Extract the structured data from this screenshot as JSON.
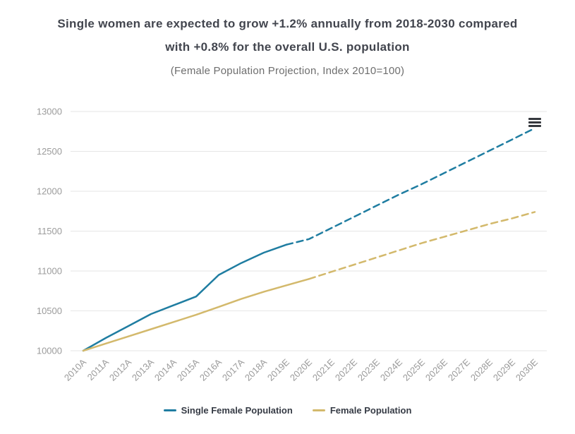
{
  "header": {
    "title_line1": "Single women are expected to grow +1.2% annually from 2018-2030 compared",
    "title_line2": "with +0.8% for the overall U.S. population",
    "subtitle": "(Female Population Projection, Index 2010=100)"
  },
  "colors": {
    "single_female_line": "#1f7da1",
    "female_line": "#d3b96c",
    "grid": "#e6e6e6",
    "axis_label": "#9b9b9b",
    "title_text": "#42454e",
    "subtitle_text": "#6e6e6e",
    "legend_text": "#363b45",
    "menu_icon": "#35383d"
  },
  "menu_icon_name": "chart-context-menu",
  "chart_data": {
    "type": "line",
    "title": "Single women are expected to grow +1.2% annually from 2018-2030 compared with +0.8% for the overall U.S. population",
    "subtitle": "(Female Population Projection, Index 2010=100)",
    "categories": [
      "2010A",
      "2011A",
      "2012A",
      "2013A",
      "2014A",
      "2015A",
      "2016A",
      "2017A",
      "2018A",
      "2019E",
      "2020E",
      "2021E",
      "2022E",
      "2023E",
      "2024E",
      "2025E",
      "2026E",
      "2027E",
      "2028E",
      "2029E",
      "2030E"
    ],
    "series": [
      {
        "name": "Single Female Population",
        "color": "#1f7da1",
        "solid_until": 9,
        "values": [
          10000,
          10160,
          10310,
          10460,
          10570,
          10680,
          10950,
          11100,
          11230,
          11330,
          11400,
          11540,
          11680,
          11820,
          11960,
          12090,
          12230,
          12370,
          12510,
          12650,
          12790
        ]
      },
      {
        "name": "Female Population",
        "color": "#d3b96c",
        "solid_until": 10,
        "values": [
          10000,
          10090,
          10180,
          10270,
          10360,
          10450,
          10550,
          10650,
          10740,
          10820,
          10900,
          10990,
          11080,
          11170,
          11260,
          11350,
          11430,
          11510,
          11590,
          11660,
          11740
        ]
      }
    ],
    "xlabel": "",
    "ylabel": "",
    "ylim": [
      10000,
      13000
    ],
    "yticks": [
      10000,
      10500,
      11000,
      11500,
      12000,
      12500,
      13000
    ],
    "grid": true,
    "legend_position": "bottom",
    "dashed_meaning": "estimated years (E labels)"
  }
}
